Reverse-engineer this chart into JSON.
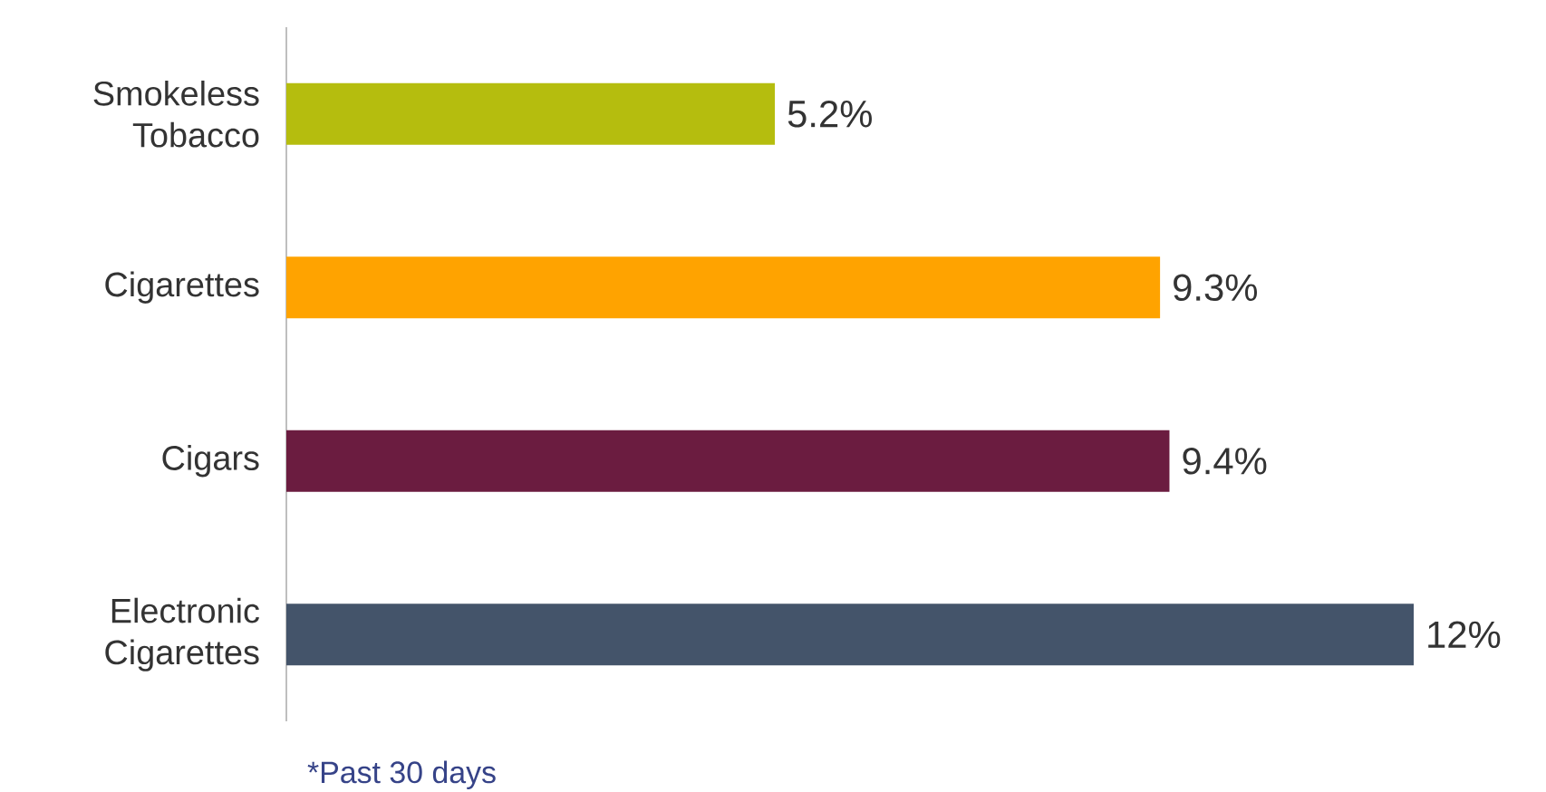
{
  "chart_data": {
    "type": "bar",
    "orientation": "horizontal",
    "categories": [
      "Smokeless Tobacco",
      "Cigarettes",
      "Cigars",
      "Electronic Cigarettes"
    ],
    "values": [
      5.2,
      9.3,
      9.4,
      12
    ],
    "colors": [
      "#b5bd0e",
      "#ffa300",
      "#6b1c40",
      "#44546a"
    ],
    "value_labels": [
      "5.2%",
      "9.3%",
      "9.4%",
      "12%"
    ],
    "annotations": [
      "*Past 30 days"
    ]
  }
}
